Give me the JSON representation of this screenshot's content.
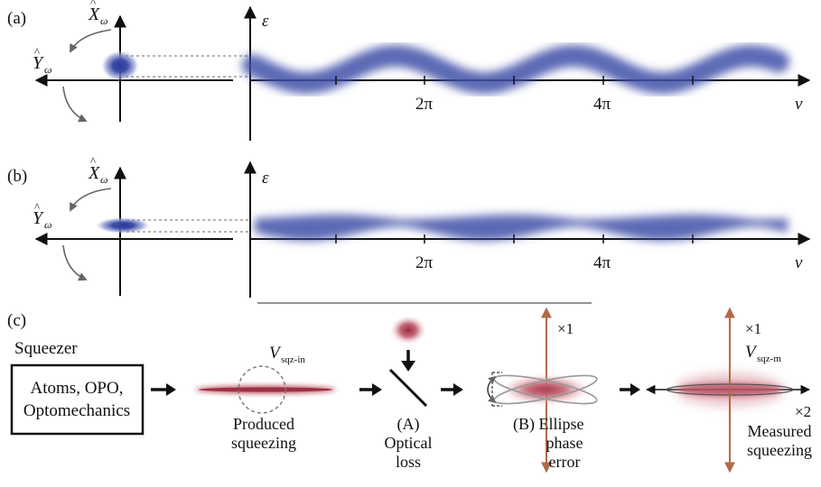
{
  "panels": {
    "a": {
      "label": "(a)",
      "x_quadrature": "X",
      "y_quadrature": "Y",
      "quad_sub": "ω",
      "axis_y": "ε",
      "axis_x": "v",
      "ticks": [
        "2π",
        "4π"
      ]
    },
    "b": {
      "label": "(b)",
      "x_quadrature": "X",
      "y_quadrature": "Y",
      "quad_sub": "ω",
      "axis_y": "ε",
      "axis_x": "v",
      "ticks": [
        "2π",
        "4π"
      ]
    },
    "c": {
      "label": "(c)",
      "squeezer_title": "Squeezer",
      "squeezer_box": [
        "Atoms, OPO,",
        "Optomechanics"
      ],
      "v_sqz_in_main": "V",
      "v_sqz_in_sub": "sqz-in",
      "produced_caption": [
        "Produced",
        "squeezing"
      ],
      "loss_caption": [
        "(A)",
        "Optical",
        "loss"
      ],
      "ellipse_caption": [
        "(B) Ellipse",
        "phase",
        "error"
      ],
      "scale_x1": "×1",
      "scale_x1_measured": "×1",
      "v_sqz_m_main": "V",
      "v_sqz_m_sub": "sqz-m",
      "scale_x2": "×2",
      "measured_caption": [
        "Measured",
        "squeezing"
      ]
    }
  },
  "colors": {
    "wave_blue": "#3e4fa8",
    "squeeze_red": "#b5485a",
    "arrow_brown": "#b06a48",
    "line": "#111111",
    "dashed": "#888888"
  }
}
